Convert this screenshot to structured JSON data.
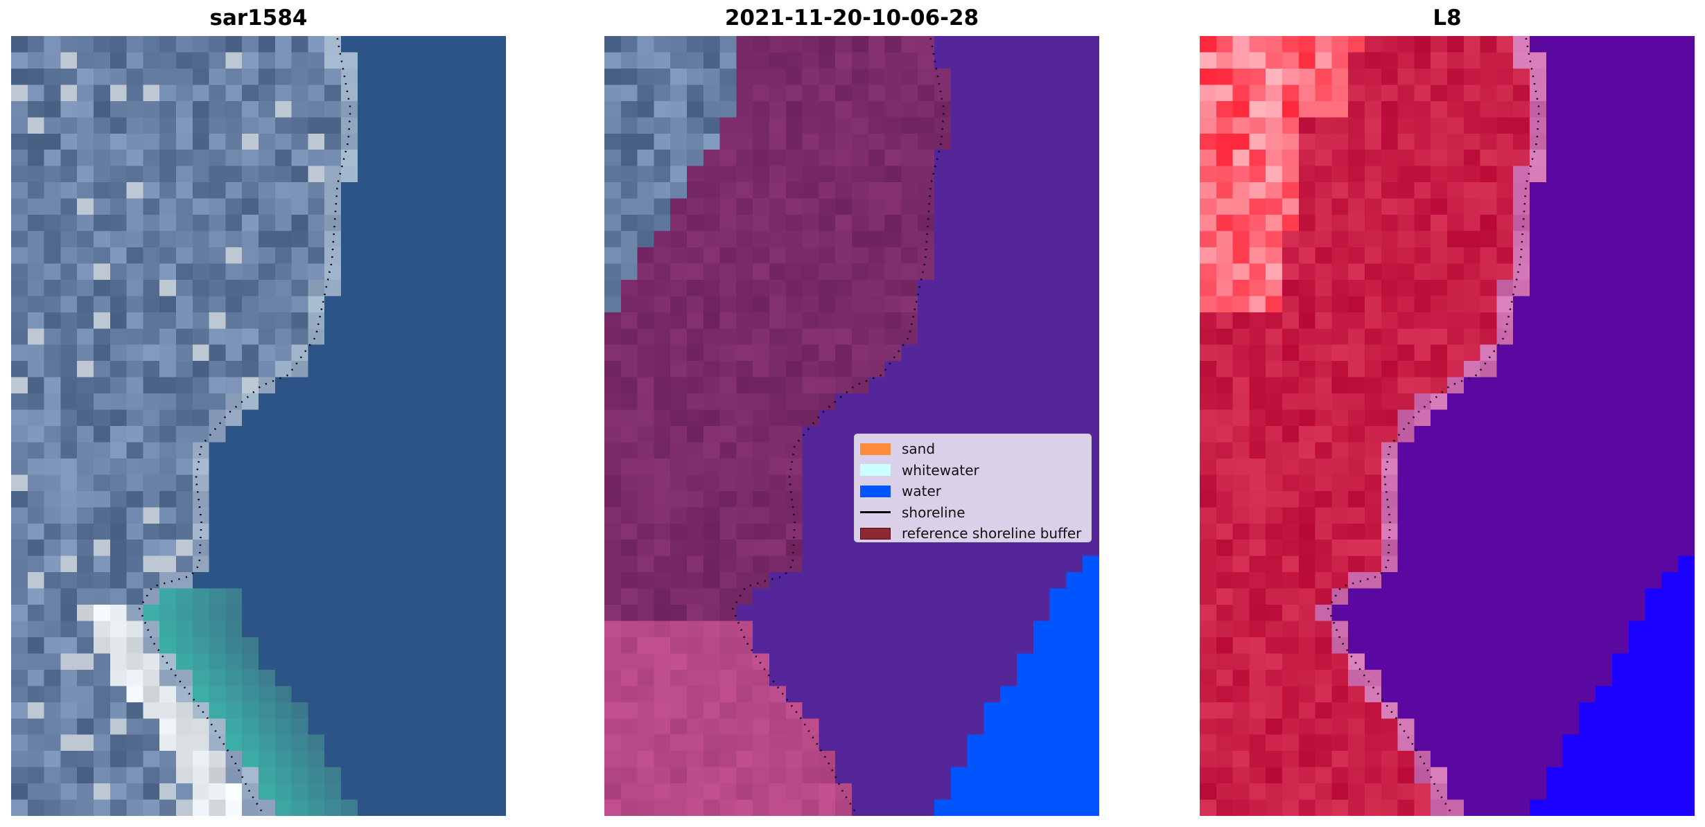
{
  "panels": [
    {
      "title": "sar1584",
      "style": "rgb"
    },
    {
      "title": "2021-11-20-10-06-28",
      "style": "classified"
    },
    {
      "title": "L8",
      "style": "falsecolor"
    }
  ],
  "legend": {
    "items": [
      {
        "label": "sand",
        "color": "#ff8c3c",
        "kind": "patch"
      },
      {
        "label": "whitewater",
        "color": "#ccffff",
        "kind": "patch"
      },
      {
        "label": "water",
        "color": "#0055ff",
        "kind": "patch"
      },
      {
        "label": "shoreline",
        "color": "#000000",
        "kind": "line"
      },
      {
        "label": "reference shoreline buffer",
        "color": "#8b1a2a",
        "kind": "patch"
      }
    ]
  }
}
